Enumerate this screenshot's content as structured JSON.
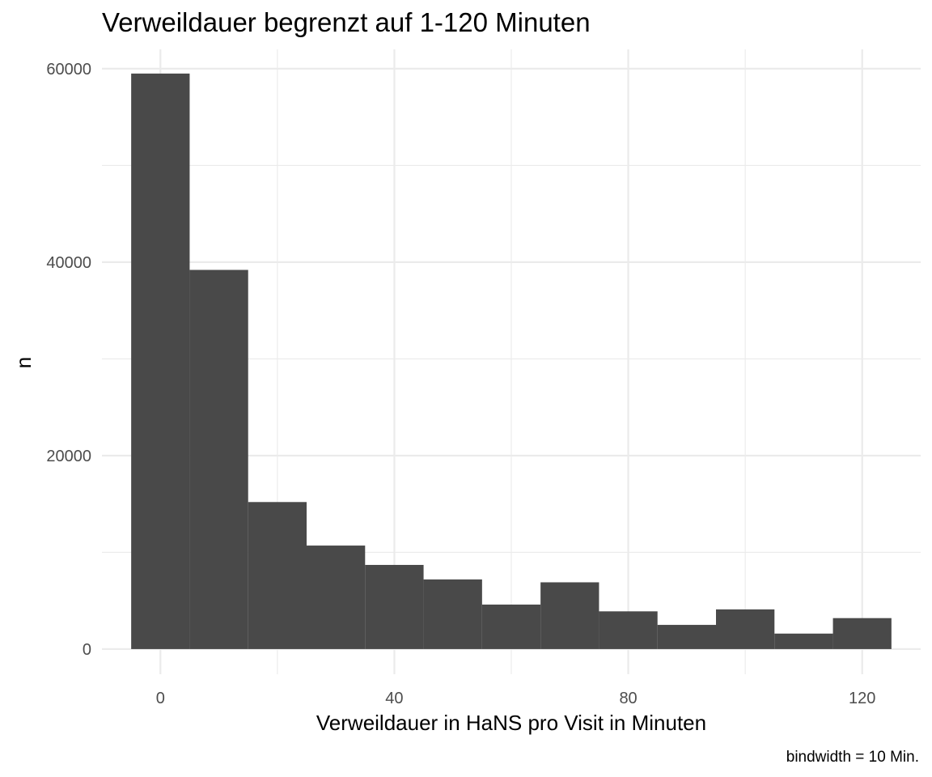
{
  "chart_data": {
    "type": "bar",
    "title": "Verweildauer begrenzt auf 1-120 Minuten",
    "xlabel": "Verweildauer in HaNS pro Visit in Minuten",
    "ylabel": "n",
    "caption": "bindwidth = 10 Min.",
    "binwidth": 10,
    "bins": [
      {
        "center": 0,
        "count": 59500
      },
      {
        "center": 10,
        "count": 39200
      },
      {
        "center": 20,
        "count": 15200
      },
      {
        "center": 30,
        "count": 10700
      },
      {
        "center": 40,
        "count": 8700
      },
      {
        "center": 50,
        "count": 7200
      },
      {
        "center": 60,
        "count": 4600
      },
      {
        "center": 70,
        "count": 6900
      },
      {
        "center": 80,
        "count": 3900
      },
      {
        "center": 90,
        "count": 2500
      },
      {
        "center": 100,
        "count": 4100
      },
      {
        "center": 110,
        "count": 1600
      },
      {
        "center": 120,
        "count": 3200
      }
    ],
    "xlim": [
      -10,
      130
    ],
    "ylim": [
      -2600,
      62000
    ],
    "x_ticks": [
      0,
      40,
      80,
      120
    ],
    "x_tick_labels": [
      "0",
      "40",
      "80",
      "120"
    ],
    "y_ticks": [
      0,
      20000,
      40000,
      60000
    ],
    "y_tick_labels": [
      "0",
      "20000",
      "40000",
      "60000"
    ],
    "x_minor": [
      20,
      60,
      100
    ],
    "y_minor": [
      10000,
      30000,
      50000
    ],
    "bar_color": "#494949",
    "grid": true,
    "legend": "none"
  }
}
